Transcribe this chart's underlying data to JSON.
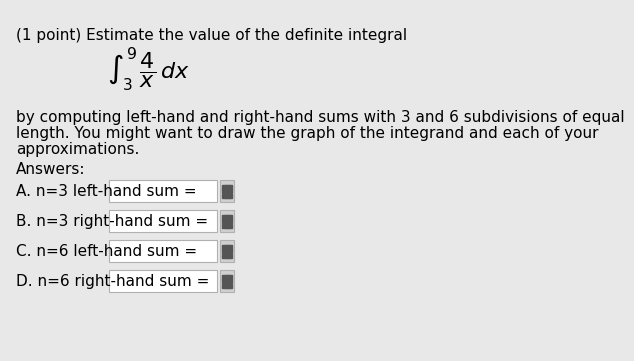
{
  "background_color": "#e8e8e8",
  "title_line": "(1 point) Estimate the value of the definite integral",
  "body_text": "by computing left-hand and right-hand sums with 3 and 6 subdivisions of equal\nlength. You might want to draw the graph of the integrand and each of your\napproximations.",
  "answers_label": "Answers:",
  "answer_labels": [
    "A. n=3 left-hand sum =",
    "B. n=3 right-hand sum =",
    "C. n=6 left-hand sum =",
    "D. n=6 right-hand sum ="
  ],
  "input_box_color": "#ffffff",
  "input_box_border": "#b0b0b0",
  "grid_icon_color": "#555555",
  "text_color": "#000000",
  "font_size_main": 11,
  "font_size_title": 11
}
